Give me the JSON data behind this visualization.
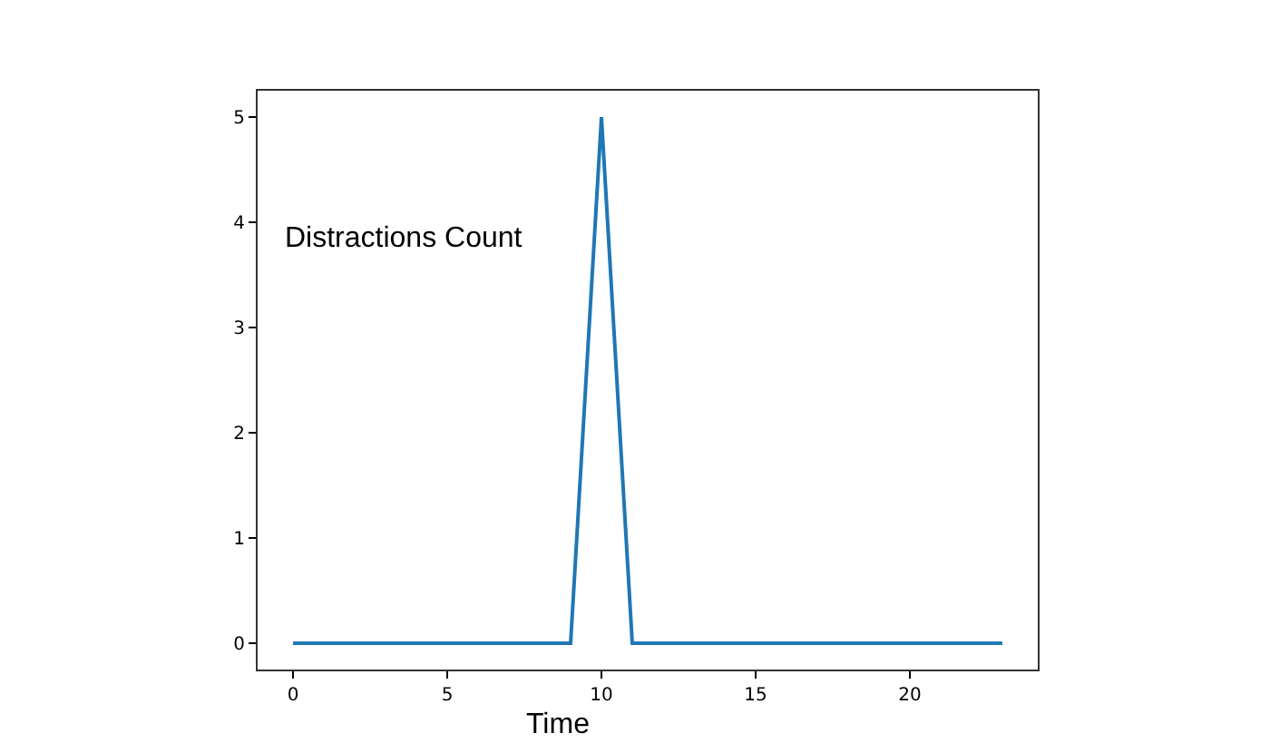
{
  "chart_data": {
    "type": "line",
    "xlabel": "Time",
    "ylabel": "Distractions Count",
    "x": [
      0,
      1,
      2,
      3,
      4,
      5,
      6,
      7,
      8,
      9,
      10,
      11,
      12,
      13,
      14,
      15,
      16,
      17,
      18,
      19,
      20,
      21,
      22,
      23
    ],
    "values": [
      0,
      0,
      0,
      0,
      0,
      0,
      0,
      0,
      0,
      0,
      5,
      0,
      0,
      0,
      0,
      0,
      0,
      0,
      0,
      0,
      0,
      0,
      0,
      0
    ],
    "color": "#1f77b4",
    "xlim": [
      -1.15,
      24.15
    ],
    "xticks": [
      0,
      5,
      10,
      15,
      20
    ],
    "ylim": [
      -0.25,
      5.25
    ],
    "yticks": [
      0,
      1,
      2,
      3,
      4,
      5
    ]
  }
}
